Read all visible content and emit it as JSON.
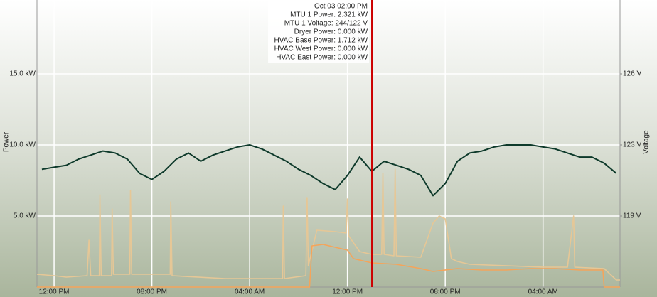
{
  "chart_data": {
    "type": "line",
    "ylabel": "Power",
    "y2label": "Voltage",
    "xlim": [
      -1.4,
      46.3
    ],
    "xticks": [
      {
        "value": 0,
        "label": "12:00 PM"
      },
      {
        "value": 8,
        "label": "08:00 PM"
      },
      {
        "value": 16,
        "label": "04:00 AM"
      },
      {
        "value": 24,
        "label": "12:00 PM"
      },
      {
        "value": 32,
        "label": "08:00 PM"
      },
      {
        "value": 40,
        "label": "04:00 AM"
      }
    ],
    "ylim": [
      0,
      20.2
    ],
    "yticks": [
      {
        "value": 5,
        "label": "5.0 kW"
      },
      {
        "value": 10,
        "label": "10.0 kW"
      },
      {
        "value": 15,
        "label": "15.0 kW"
      }
    ],
    "y2lim": [
      115.9,
      130.04
    ],
    "y2ticks": [
      {
        "value": 119.4,
        "label": "119 V"
      },
      {
        "value": 122.9,
        "label": "123 V"
      },
      {
        "value": 126.4,
        "label": "126 V"
      }
    ],
    "grid": true,
    "cursor": {
      "x": 26,
      "color": "#cc0000"
    },
    "tooltip": {
      "title": "Oct 03 02:00 PM",
      "lines": [
        "MTU 1 Power: 2.321 kW",
        "MTU 1 Voltage: 244/122 V",
        "Dryer Power: 0.000 kW",
        "HVAC Base Power: 1.712 kW",
        "HVAC West Power: 0.000 kW",
        "HVAC East Power: 0.000 kW"
      ]
    },
    "series": [
      {
        "color": "#e6c796",
        "x": [
          -1.4,
          0,
          1,
          2.7,
          2.85,
          3.0,
          3.7,
          3.75,
          3.85,
          4.7,
          4.75,
          4.85,
          6.2,
          6.25,
          6.35,
          9.5,
          9.55,
          9.65,
          14,
          18,
          18.7,
          18.75,
          18.85,
          20.6,
          20.7,
          20.8,
          21.5,
          23,
          23.9,
          24,
          24.1,
          25,
          26,
          26.8,
          26.9,
          27,
          27.8,
          27.9,
          28,
          30,
          31,
          31.5,
          32,
          32.5,
          33,
          34,
          40,
          42,
          42.5,
          42.6,
          45,
          46,
          46.3
        ],
        "values": [
          0.9,
          0.8,
          0.7,
          0.8,
          3.3,
          0.8,
          0.8,
          6.5,
          0.8,
          0.8,
          5.5,
          0.9,
          0.9,
          6.8,
          0.9,
          0.9,
          6.0,
          0.8,
          0.6,
          0.6,
          0.6,
          5.7,
          0.6,
          0.8,
          6.3,
          1.5,
          4.0,
          3.9,
          3.8,
          6.2,
          3.6,
          2.5,
          2.3,
          2.3,
          8.0,
          2.3,
          2.2,
          8.3,
          2.2,
          2.1,
          4.5,
          5.0,
          4.8,
          2.0,
          1.8,
          1.6,
          1.4,
          1.4,
          5.0,
          1.4,
          1.3,
          0.5,
          0.5
        ]
      },
      {
        "color": "#f5a45a",
        "x": [
          -1.4,
          20.9,
          21.1,
          22,
          23,
          24,
          24.5,
          26,
          28,
          30,
          31,
          33,
          35,
          37,
          39,
          41,
          43,
          44.9,
          45,
          46.3
        ],
        "values": [
          0,
          0,
          2.9,
          3.0,
          2.8,
          2.6,
          2.0,
          1.7,
          1.6,
          1.3,
          1.1,
          1.3,
          1.2,
          1.2,
          1.3,
          1.3,
          1.2,
          1.2,
          0,
          0
        ]
      },
      {
        "color": "#0e3a2b",
        "axis": "y2",
        "x": [
          -1,
          0,
          1,
          2,
          3,
          4,
          5,
          6,
          7,
          8,
          9,
          10,
          11,
          12,
          13,
          14,
          15,
          16,
          17,
          18,
          19,
          20,
          21,
          22,
          23,
          24,
          25,
          26,
          27,
          28,
          29,
          30,
          31,
          32,
          33,
          34,
          35,
          36,
          37,
          38,
          39,
          40,
          41,
          42,
          43,
          44,
          45,
          46
        ],
        "values": [
          121.7,
          121.8,
          121.9,
          122.2,
          122.4,
          122.6,
          122.5,
          122.2,
          121.5,
          121.2,
          121.6,
          122.2,
          122.5,
          122.1,
          122.4,
          122.6,
          122.8,
          122.9,
          122.7,
          122.4,
          122.1,
          121.7,
          121.4,
          121.0,
          120.7,
          121.4,
          122.3,
          121.6,
          122.1,
          121.9,
          121.7,
          121.4,
          120.4,
          121.0,
          122.1,
          122.5,
          122.6,
          122.8,
          122.9,
          122.9,
          122.9,
          122.8,
          122.7,
          122.5,
          122.3,
          122.3,
          122.0,
          121.5
        ]
      }
    ]
  }
}
